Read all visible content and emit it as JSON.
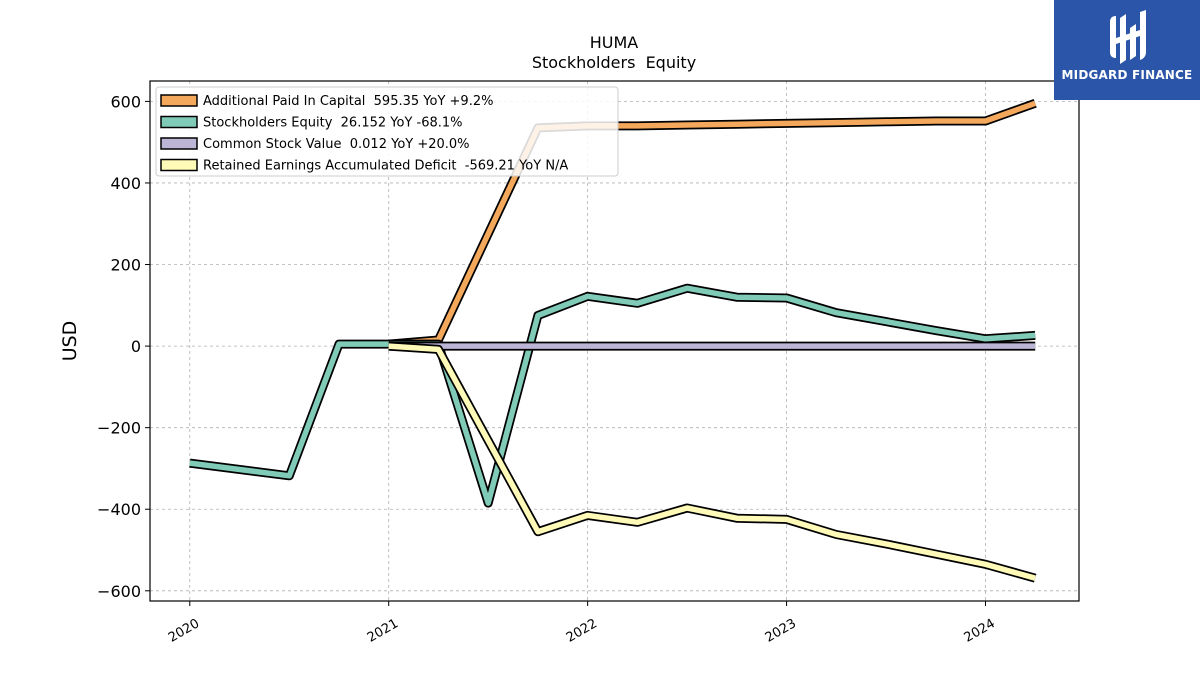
{
  "chart_data": {
    "type": "line",
    "title": "HUMA",
    "subtitle": "Stockholders  Equity",
    "ylabel": "USD",
    "xlabel": "",
    "ylim": [
      -625,
      650
    ],
    "xlim": [
      2019.8,
      2024.47
    ],
    "grid": true,
    "legend_position": "top-left",
    "x_ticks": [
      2020,
      2021,
      2022,
      2023,
      2024
    ],
    "x_tick_labels": [
      "2020",
      "2021",
      "2022",
      "2023",
      "2024"
    ],
    "y_ticks": [
      600,
      400,
      200,
      0,
      -200,
      -400,
      -600
    ],
    "y_tick_labels": [
      "600",
      "400",
      "200",
      "0",
      "−200",
      "−400",
      "−600"
    ],
    "series": [
      {
        "name": "Additional Paid In Capital",
        "legend": "Additional Paid In Capital  595.35 YoY +9.2%",
        "color": "#f4a85c",
        "x": [
          2021.0,
          2021.25,
          2021.75,
          2022.0,
          2022.25,
          2022.5,
          2022.75,
          2023.0,
          2023.25,
          2023.5,
          2023.75,
          2024.0,
          2024.25
        ],
        "y": [
          5,
          15,
          535,
          540,
          540,
          542,
          544,
          546,
          548,
          550,
          552,
          552,
          595.35
        ]
      },
      {
        "name": "Stockholders Equity",
        "legend": "Stockholders Equity  26.152 YoY -68.1%",
        "color": "#80cbb8",
        "x": [
          2020.0,
          2020.5,
          2020.75,
          2021.0,
          2021.25,
          2021.5,
          2021.75,
          2022.0,
          2022.25,
          2022.5,
          2022.75,
          2023.0,
          2023.25,
          2023.5,
          2023.75,
          2024.0,
          2024.25
        ],
        "y": [
          -287,
          -318,
          5,
          5,
          5,
          -385,
          75,
          122,
          105,
          142,
          120,
          118,
          82,
          60,
          38,
          18,
          26.152
        ]
      },
      {
        "name": "Common Stock Value",
        "legend": "Common Stock Value  0.012 YoY +20.0%",
        "color": "#bcb5d6",
        "x": [
          2021.0,
          2021.25,
          2021.5,
          2021.75,
          2022.0,
          2022.25,
          2022.5,
          2022.75,
          2023.0,
          2023.25,
          2023.5,
          2023.75,
          2024.0,
          2024.25
        ],
        "y": [
          0,
          0,
          0,
          0,
          0,
          0,
          0,
          0,
          0,
          0,
          0,
          0,
          0,
          0.012
        ]
      },
      {
        "name": "Retained Earnings Accumulated Deficit",
        "legend": "Retained Earnings Accumulated Deficit  -569.21 YoY N/A",
        "color": "#fffab8",
        "x": [
          2021.0,
          2021.25,
          2021.75,
          2022.0,
          2022.25,
          2022.5,
          2022.75,
          2023.0,
          2023.25,
          2023.5,
          2023.75,
          2024.0,
          2024.25
        ],
        "y": [
          0,
          -8,
          -455,
          -415,
          -432,
          -397,
          -422,
          -425,
          -462,
          -485,
          -510,
          -535,
          -569.21
        ]
      }
    ]
  },
  "logo": {
    "text": "MIDGARD FINANCE",
    "bg_color": "#2b55a8"
  }
}
